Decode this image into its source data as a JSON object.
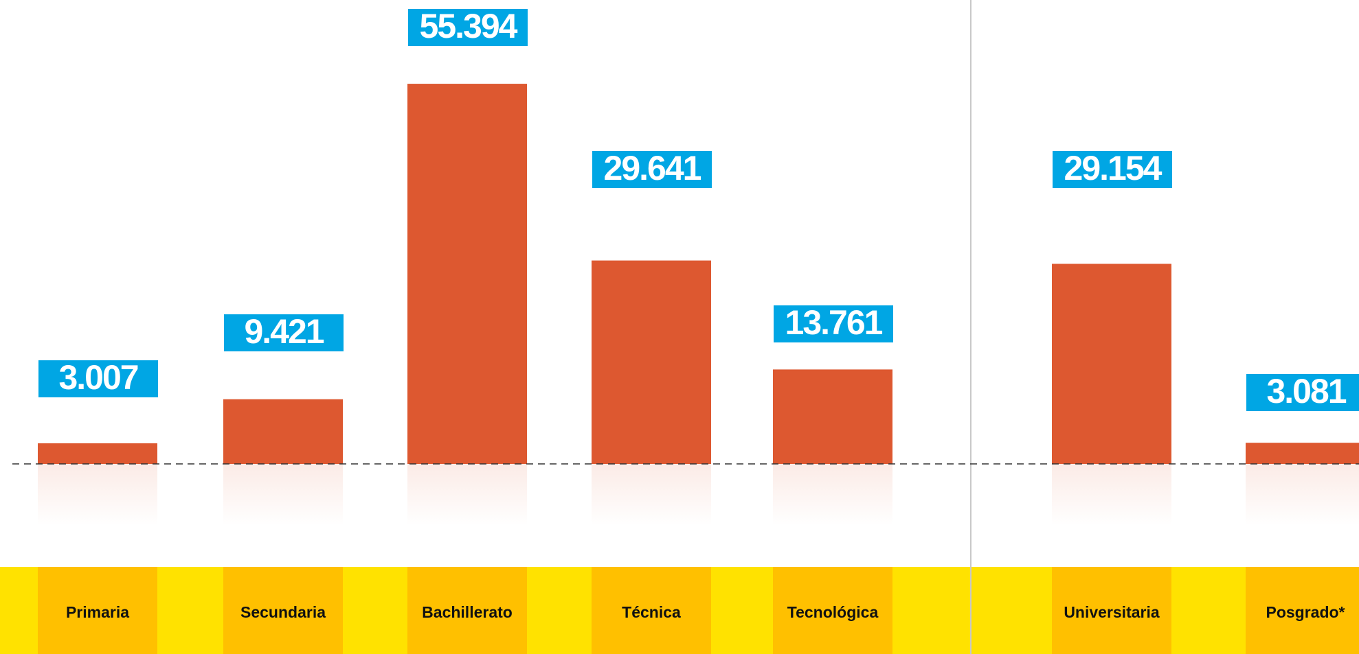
{
  "chart_data": {
    "type": "bar",
    "categories": [
      "Primaria",
      "Secundaria",
      "Bachillerato",
      "Técnica",
      "Tecnológica",
      "Universitaria",
      "Posgrado*"
    ],
    "values": [
      3007,
      9421,
      55394,
      29641,
      13761,
      29154,
      3081
    ],
    "value_labels": [
      "3.007",
      "9.421",
      "55.394",
      "29.641",
      "13.761",
      "29.154",
      "3.081"
    ],
    "color": "#dd5830"
  }
}
